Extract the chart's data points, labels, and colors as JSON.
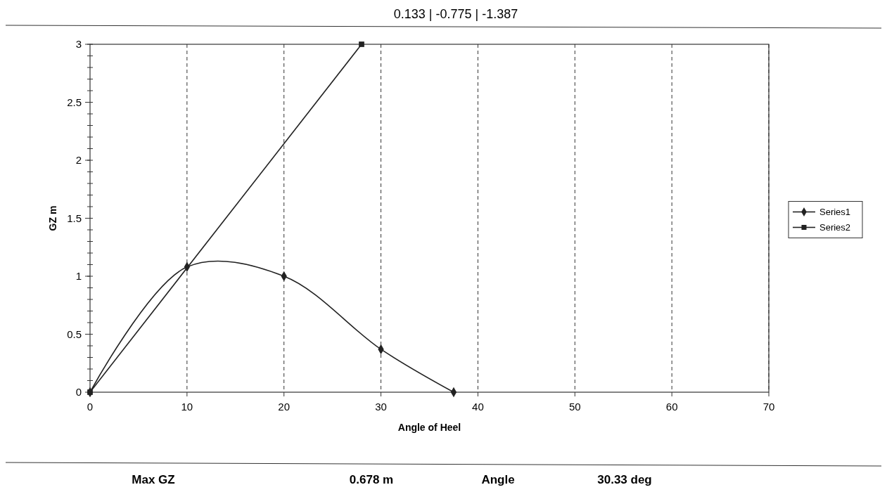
{
  "chart_data": {
    "type": "line",
    "xlabel": "Angle of Heel",
    "ylabel": "GZ m",
    "xlim": [
      0,
      70
    ],
    "xticks": [
      0,
      10,
      20,
      30,
      40,
      50,
      60,
      70
    ],
    "ylim": [
      0,
      3
    ],
    "yticks": [
      0,
      0.5,
      1,
      1.5,
      2,
      2.5,
      3
    ],
    "grid": "x",
    "legend": "right",
    "series": [
      {
        "name": "Series1",
        "color": "#222222",
        "marker": "diamond",
        "x": [
          0,
          10,
          20,
          30,
          37.5
        ],
        "values": [
          0,
          1.08,
          1.0,
          0.37,
          0
        ]
      },
      {
        "name": "Series2",
        "color": "#222222",
        "marker": "square",
        "x": [
          0,
          28
        ],
        "values": [
          0,
          3.0
        ]
      }
    ],
    "annotations": [
      "0.133 | -0.775 | -1.387",
      "Max GZ",
      "0.678 m",
      "Angle",
      "30.33 deg"
    ]
  }
}
